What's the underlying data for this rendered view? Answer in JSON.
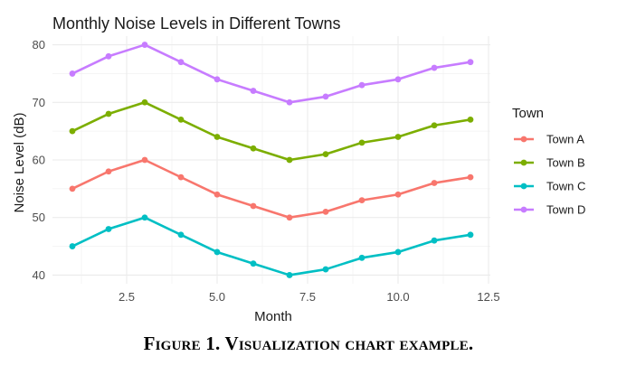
{
  "chart_data": {
    "type": "line",
    "title": "Monthly Noise Levels in Different Towns",
    "xlabel": "Month",
    "ylabel": "Noise Level (dB)",
    "xlim": [
      0.45,
      12.55
    ],
    "ylim": [
      38.5,
      81.5
    ],
    "x_ticks": [
      2.5,
      5.0,
      7.5,
      10.0,
      12.5
    ],
    "x_tick_labels": [
      "2.5",
      "5.0",
      "7.5",
      "10.0",
      "12.5"
    ],
    "y_ticks": [
      40,
      50,
      60,
      70,
      80
    ],
    "y_tick_labels": [
      "40",
      "50",
      "60",
      "70",
      "80"
    ],
    "grid": true,
    "legend_title": "Town",
    "legend_position": "right",
    "x": [
      1,
      2,
      3,
      4,
      5,
      6,
      7,
      8,
      9,
      10,
      11,
      12
    ],
    "series": [
      {
        "name": "Town A",
        "color": "#F8766D",
        "values": [
          55,
          58,
          60,
          57,
          54,
          52,
          50,
          51,
          53,
          54,
          56,
          57
        ]
      },
      {
        "name": "Town B",
        "color": "#7CAE00",
        "values": [
          65,
          68,
          70,
          67,
          64,
          62,
          60,
          61,
          63,
          64,
          66,
          67
        ]
      },
      {
        "name": "Town C",
        "color": "#00BFC4",
        "values": [
          45,
          48,
          50,
          47,
          44,
          42,
          40,
          41,
          43,
          44,
          46,
          47
        ]
      },
      {
        "name": "Town D",
        "color": "#C77CFF",
        "values": [
          75,
          78,
          80,
          77,
          74,
          72,
          70,
          71,
          73,
          74,
          76,
          77
        ]
      }
    ]
  },
  "caption": "Figure 1. Visualization chart example."
}
